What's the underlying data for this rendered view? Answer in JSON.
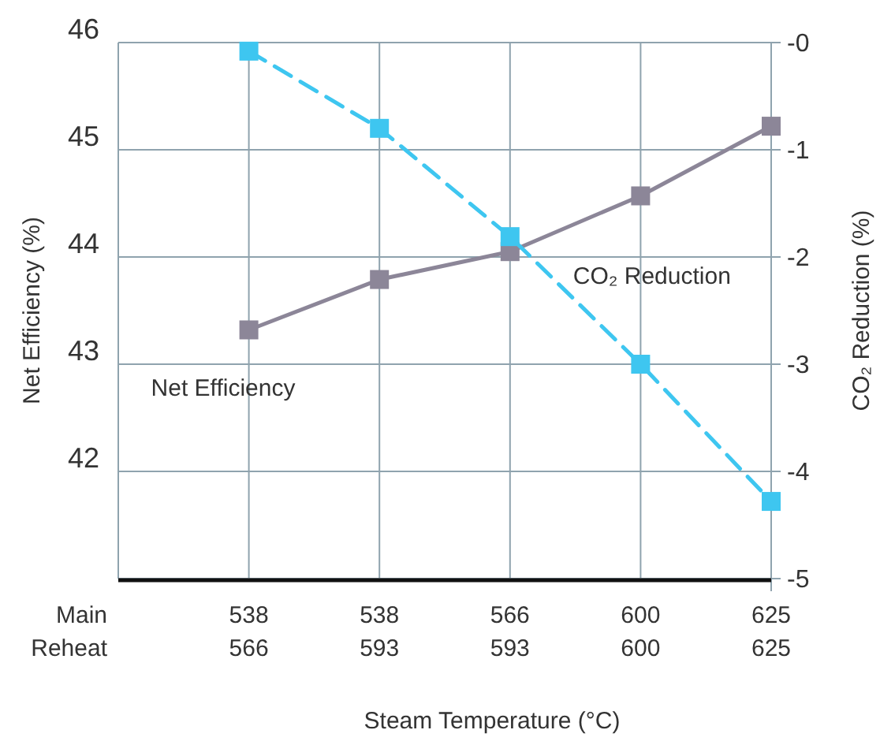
{
  "chart_data": {
    "type": "line",
    "xlabel": "Steam Temperature (°C)",
    "ylabel": "Net Efficiency (%)",
    "y2label": "CO₂ Reduction (%)",
    "categories": [
      "538\n566",
      "538\n593",
      "566\n593",
      "600\n600",
      "625\n625"
    ],
    "ylim": [
      41,
      46
    ],
    "yticks": [
      {
        "value": 41,
        "label": null
      },
      42,
      43,
      44,
      45,
      46
    ],
    "y2lim": [
      -5,
      0
    ],
    "y2ticks": [
      -5,
      -4,
      -3,
      -2,
      -1,
      {
        "value": 0,
        "label": "-0"
      }
    ],
    "grid": true,
    "marker": "square",
    "annotations": [
      "Main",
      "Reheat"
    ],
    "series": [
      {
        "name": "Net Efficiency",
        "color": "#8c8698",
        "values": [
          43.32,
          43.79,
          44.05,
          44.57,
          45.22
        ],
        "line_style": "solid"
      },
      {
        "name": "CO₂ Reduction",
        "color": "#3ec6f0",
        "values": [
          -0.08,
          -0.8,
          -1.81,
          -3.0,
          -4.28
        ],
        "axis": "y2",
        "line_style": "dashed"
      }
    ]
  }
}
